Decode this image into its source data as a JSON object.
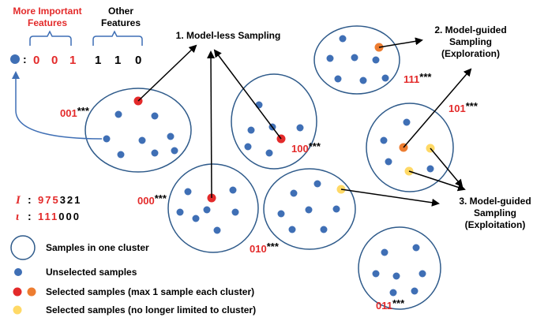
{
  "colors": {
    "red": "#e32a2a",
    "blue": "#3f6fb5",
    "orange": "#ed7d31",
    "yellow": "#ffd966",
    "cluster_stroke": "#2e5a8a",
    "arrow": "#000000",
    "brace": "#3f6fb5"
  },
  "header": {
    "important_line1": "More Important",
    "important_line2": "Features",
    "other_line1": "Other",
    "other_line2": "Features",
    "colon": ":",
    "important_bits": [
      "0",
      "0",
      "1"
    ],
    "other_bits": [
      "1",
      "1",
      "0"
    ]
  },
  "titles": {
    "modelless": "1. Model-less Sampling",
    "exploration_line1": "2. Model-guided",
    "exploration_line2": "Sampling",
    "exploration_line3": "(Exploration)",
    "exploitation_line1": "3. Model-guided",
    "exploitation_line2": "Sampling",
    "exploitation_line3": "(Exploitation)"
  },
  "clusters": [
    {
      "code": "001",
      "suffix": "***"
    },
    {
      "code": "000",
      "suffix": "***"
    },
    {
      "code": "100",
      "suffix": "***"
    },
    {
      "code": "010",
      "suffix": "***"
    },
    {
      "code": "111",
      "suffix": "***"
    },
    {
      "code": "101",
      "suffix": "***"
    },
    {
      "code": "011",
      "suffix": "***"
    }
  ],
  "importance": {
    "I_symbol": "I",
    "I_colon": ":",
    "I_red": "975",
    "I_black": "321",
    "iota_symbol": "ι",
    "iota_colon": ":",
    "iota_red": "111",
    "iota_black": "000"
  },
  "legend": {
    "cluster": "Samples in one cluster",
    "unselected": "Unselected samples",
    "selected_limited": "Selected samples (max 1 sample each cluster)",
    "selected_unlimited": "Selected samples (no longer limited to cluster)"
  }
}
